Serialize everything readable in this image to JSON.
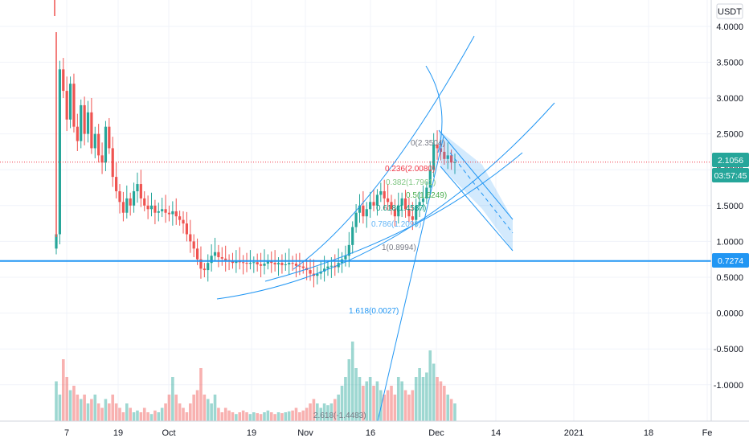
{
  "chart_data": {
    "type": "candlestick",
    "currency_label": "USDT",
    "x_tick_labels": [
      "7",
      "19",
      "Oct",
      "19",
      "Nov",
      "16",
      "Dec",
      "14",
      "2021",
      "18",
      "Fe"
    ],
    "y_tick_labels": [
      "4.0000",
      "3.5000",
      "3.0000",
      "2.5000",
      "2.0000",
      "1.5000",
      "1.0000",
      "0.5000",
      "0.0000",
      "-0.5000",
      "-1.0000"
    ],
    "y_ticks": [
      4.0,
      3.5,
      3.0,
      2.5,
      2.0,
      1.5,
      1.0,
      0.5,
      0.0,
      -0.5,
      -1.0
    ],
    "ylim": [
      -1.5,
      4.3
    ],
    "price_tags": [
      {
        "label": "2.1056",
        "value": 2.1056,
        "color": "#26a69a"
      },
      {
        "label": "03:57:45",
        "value": 1.88,
        "color": "#26a69a"
      },
      {
        "label": "0.7274",
        "value": 0.7274,
        "color": "#2196f3"
      }
    ],
    "horizontal_line": 0.7274,
    "last_price_line": 2.1056,
    "fib_levels": [
      {
        "label": "0(2.3504)",
        "value": 2.3504,
        "color": "#787b86"
      },
      {
        "label": "0.236(2.0080)",
        "value": 2.008,
        "color": "#f23645"
      },
      {
        "label": "0.382(1.7961)",
        "value": 1.7961,
        "color": "#81c784"
      },
      {
        "label": "0.5(1.6249)",
        "value": 1.6249,
        "color": "#4caf50"
      },
      {
        "label": "0.618(1.4537)",
        "value": 1.4537,
        "color": "#089981"
      },
      {
        "label": "0.786(1.2099)",
        "value": 1.2099,
        "color": "#64b5f6"
      },
      {
        "label": "1(0.8994)",
        "value": 0.8994,
        "color": "#787b86"
      },
      {
        "label": "1.618(0.0027)",
        "value": 0.0027,
        "color": "#2196f3"
      },
      {
        "label": "2.618(-1.4483)",
        "value": -1.4483,
        "color": "#787b86"
      }
    ],
    "price_series": [
      1.1,
      3.4,
      3.1,
      2.7,
      3.2,
      2.6,
      2.4,
      2.9,
      2.5,
      2.8,
      2.3,
      2.5,
      2.2,
      2.1,
      2.6,
      2.3,
      1.9,
      1.7,
      1.55,
      1.4,
      1.6,
      1.5,
      1.7,
      1.8,
      1.6,
      1.5,
      1.45,
      1.5,
      1.4,
      1.42,
      1.45,
      1.4,
      1.38,
      1.42,
      1.35,
      1.3,
      1.25,
      1.1,
      1.0,
      0.9,
      0.75,
      0.62,
      0.6,
      0.7,
      0.8,
      0.85,
      0.78,
      0.76,
      0.74,
      0.72,
      0.7,
      0.72,
      0.71,
      0.7,
      0.69,
      0.7,
      0.71,
      0.68,
      0.66,
      0.69,
      0.72,
      0.7,
      0.68,
      0.7,
      0.67,
      0.68,
      0.7,
      0.69,
      0.66,
      0.65,
      0.63,
      0.6,
      0.55,
      0.52,
      0.55,
      0.58,
      0.62,
      0.65,
      0.66,
      0.64,
      0.7,
      0.75,
      0.8,
      0.95,
      1.2,
      1.4,
      1.5,
      1.35,
      1.45,
      1.55,
      1.5,
      1.65,
      1.7,
      1.6,
      1.55,
      1.45,
      1.35,
      1.5,
      1.6,
      1.45,
      1.35,
      1.3,
      1.5,
      1.55,
      1.6,
      1.75,
      2.0,
      2.35,
      2.3,
      2.25,
      2.15,
      2.2,
      2.1,
      2.1056
    ],
    "volume_series": [
      0.45,
      0.3,
      0.7,
      0.5,
      0.35,
      0.4,
      0.3,
      0.25,
      0.3,
      0.2,
      0.25,
      0.3,
      0.2,
      0.15,
      0.25,
      0.2,
      0.3,
      0.2,
      0.15,
      0.1,
      0.2,
      0.15,
      0.1,
      0.12,
      0.1,
      0.15,
      0.1,
      0.08,
      0.12,
      0.1,
      0.15,
      0.2,
      0.3,
      0.5,
      0.3,
      0.2,
      0.15,
      0.1,
      0.2,
      0.3,
      0.35,
      0.6,
      0.3,
      0.25,
      0.2,
      0.3,
      0.15,
      0.1,
      0.15,
      0.12,
      0.1,
      0.08,
      0.1,
      0.12,
      0.1,
      0.08,
      0.1,
      0.09,
      0.08,
      0.1,
      0.12,
      0.1,
      0.08,
      0.1,
      0.09,
      0.1,
      0.11,
      0.12,
      0.15,
      0.1,
      0.12,
      0.15,
      0.2,
      0.25,
      0.2,
      0.15,
      0.2,
      0.18,
      0.2,
      0.25,
      0.3,
      0.4,
      0.5,
      0.7,
      0.9,
      0.6,
      0.5,
      0.4,
      0.45,
      0.5,
      0.4,
      0.45,
      0.35,
      0.3,
      0.35,
      0.4,
      0.3,
      0.5,
      0.45,
      0.35,
      0.3,
      0.35,
      0.5,
      0.6,
      0.5,
      0.55,
      0.8,
      0.65,
      0.5,
      0.45,
      0.4,
      0.3,
      0.25,
      0.2
    ]
  }
}
